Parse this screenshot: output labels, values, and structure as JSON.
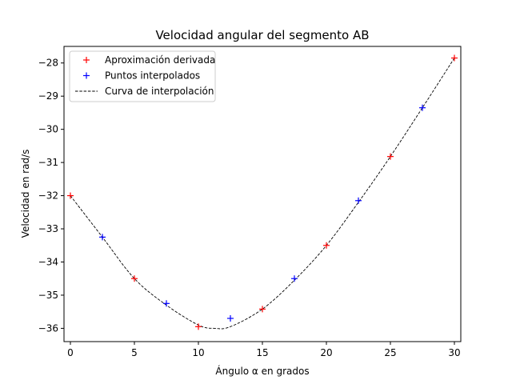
{
  "chart_data": {
    "type": "scatter",
    "title": "Velocidad angular del segmento AB",
    "xlabel": "Ángulo α en grados",
    "ylabel": "Velocidad en rad/s",
    "xlim": [
      -0.5,
      30.5
    ],
    "ylim": [
      -36.4,
      -27.5
    ],
    "xticks": [
      0,
      5,
      10,
      15,
      20,
      25,
      30
    ],
    "yticks": [
      -36,
      -35,
      -34,
      -33,
      -32,
      -31,
      -30,
      -29,
      -28
    ],
    "grid": false,
    "legend_position": "top-left",
    "series": [
      {
        "name": "Aproximación derivada",
        "marker": "+",
        "color": "#ff0000",
        "x": [
          0,
          5,
          10,
          15,
          20,
          25,
          30
        ],
        "y": [
          -32.0,
          -34.5,
          -35.95,
          -35.42,
          -33.5,
          -30.82,
          -27.85
        ]
      },
      {
        "name": "Puntos interpolados",
        "marker": "+",
        "color": "#0000ff",
        "x": [
          2.5,
          7.5,
          12.5,
          17.5,
          22.5,
          27.5
        ],
        "y": [
          -33.25,
          -35.25,
          -35.7,
          -34.5,
          -32.15,
          -29.35
        ]
      },
      {
        "name": "Curva de interpolación",
        "style": "dashed",
        "color": "#000000",
        "x": [
          0,
          2.5,
          5,
          7.5,
          10,
          11.25,
          12.5,
          15,
          17.5,
          20,
          22.5,
          25,
          27.5,
          30
        ],
        "y": [
          -32.0,
          -33.25,
          -34.5,
          -35.3,
          -35.9,
          -36.0,
          -35.95,
          -35.42,
          -34.55,
          -33.5,
          -32.2,
          -30.82,
          -29.35,
          -27.85
        ]
      }
    ]
  }
}
